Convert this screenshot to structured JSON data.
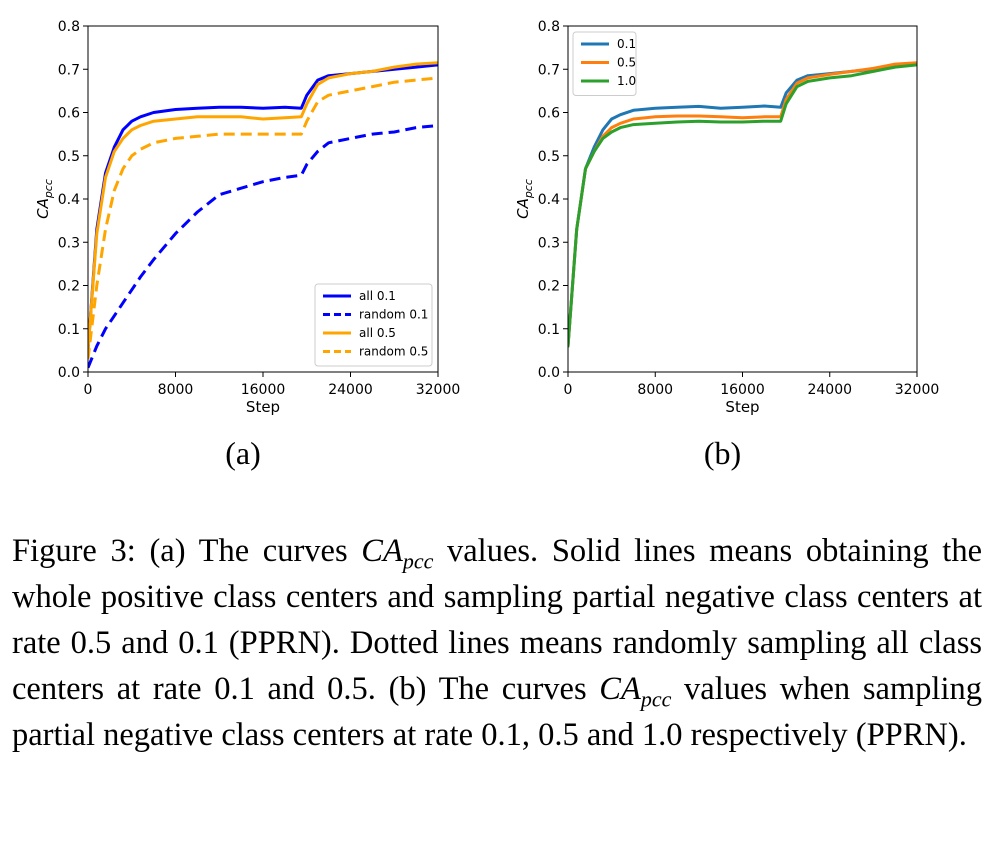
{
  "caption": {
    "lead": "Figure 3: (a) The curves ",
    "math_main": "CA",
    "math_sub": "pcc",
    "part2": " values. Solid lines means obtaining the whole positive class centers and sampling partial negative class centers at rate 0.5 and 0.1 (PPRN). Dotted lines means randomly sampling all class centers at rate 0.1 and 0.5. (b) The curves ",
    "part3": " values when sampling partial negative class centers at rate 0.1, 0.5 and 1.0 respectively (PPRN)."
  },
  "chart_data": [
    {
      "id": "a",
      "panel_label": "(a)",
      "type": "line",
      "xlabel": "Step",
      "ylabel_main": "CA",
      "ylabel_sub": "pcc",
      "xlim": [
        0,
        32000
      ],
      "ylim": [
        0,
        0.8
      ],
      "xticks": [
        "0",
        "8000",
        "16000",
        "24000",
        "32000"
      ],
      "yticks": [
        "0.0",
        "0.1",
        "0.2",
        "0.3",
        "0.4",
        "0.5",
        "0.6",
        "0.7",
        "0.8"
      ],
      "legend_position": "lower-right",
      "x": [
        0,
        800,
        1600,
        2400,
        3200,
        4000,
        4800,
        6000,
        8000,
        10000,
        12000,
        14000,
        16000,
        18000,
        19500,
        20000,
        21000,
        22000,
        24000,
        26000,
        28000,
        30000,
        32000
      ],
      "series": [
        {
          "name": "all 0.1",
          "color": "#0000ff",
          "style": "solid",
          "values": [
            0.05,
            0.33,
            0.46,
            0.52,
            0.56,
            0.58,
            0.59,
            0.6,
            0.607,
            0.61,
            0.612,
            0.612,
            0.61,
            0.612,
            0.61,
            0.64,
            0.675,
            0.685,
            0.69,
            0.695,
            0.7,
            0.705,
            0.71
          ]
        },
        {
          "name": "random 0.1",
          "color": "#0000ff",
          "style": "dashed",
          "values": [
            0.01,
            0.06,
            0.1,
            0.13,
            0.16,
            0.19,
            0.22,
            0.26,
            0.32,
            0.37,
            0.41,
            0.425,
            0.44,
            0.45,
            0.455,
            0.48,
            0.51,
            0.53,
            0.54,
            0.55,
            0.555,
            0.565,
            0.57
          ]
        },
        {
          "name": "all 0.5",
          "color": "#ffa500",
          "style": "solid",
          "values": [
            0.05,
            0.32,
            0.45,
            0.51,
            0.54,
            0.56,
            0.57,
            0.58,
            0.585,
            0.59,
            0.59,
            0.59,
            0.585,
            0.588,
            0.59,
            0.62,
            0.665,
            0.68,
            0.69,
            0.695,
            0.705,
            0.712,
            0.715
          ]
        },
        {
          "name": "random 0.5",
          "color": "#ffa500",
          "style": "dashed",
          "values": [
            0.03,
            0.2,
            0.33,
            0.42,
            0.47,
            0.5,
            0.515,
            0.53,
            0.54,
            0.545,
            0.55,
            0.55,
            0.55,
            0.55,
            0.55,
            0.58,
            0.625,
            0.64,
            0.65,
            0.66,
            0.67,
            0.675,
            0.68
          ]
        }
      ]
    },
    {
      "id": "b",
      "panel_label": "(b)",
      "type": "line",
      "xlabel": "Step",
      "ylabel_main": "CA",
      "ylabel_sub": "pcc",
      "xlim": [
        0,
        32000
      ],
      "ylim": [
        0,
        0.8
      ],
      "xticks": [
        "0",
        "8000",
        "16000",
        "24000",
        "32000"
      ],
      "yticks": [
        "0.0",
        "0.1",
        "0.2",
        "0.3",
        "0.4",
        "0.5",
        "0.6",
        "0.7",
        "0.8"
      ],
      "legend_position": "top-left",
      "x": [
        0,
        800,
        1600,
        2400,
        3200,
        4000,
        4800,
        6000,
        8000,
        10000,
        12000,
        14000,
        16000,
        18000,
        19500,
        20000,
        21000,
        22000,
        24000,
        26000,
        28000,
        30000,
        32000
      ],
      "series": [
        {
          "name": "0.1",
          "color": "#1f77b4",
          "style": "solid",
          "values": [
            0.06,
            0.33,
            0.47,
            0.52,
            0.56,
            0.585,
            0.595,
            0.605,
            0.61,
            0.612,
            0.614,
            0.61,
            0.612,
            0.615,
            0.612,
            0.645,
            0.675,
            0.685,
            0.69,
            0.695,
            0.7,
            0.708,
            0.712
          ]
        },
        {
          "name": "0.5",
          "color": "#ff7f0e",
          "style": "solid",
          "values": [
            0.06,
            0.33,
            0.47,
            0.51,
            0.545,
            0.565,
            0.575,
            0.585,
            0.59,
            0.592,
            0.592,
            0.59,
            0.588,
            0.59,
            0.59,
            0.63,
            0.668,
            0.68,
            0.688,
            0.695,
            0.702,
            0.712,
            0.715
          ]
        },
        {
          "name": "1.0",
          "color": "#2ca02c",
          "style": "solid",
          "values": [
            0.06,
            0.33,
            0.47,
            0.51,
            0.54,
            0.555,
            0.565,
            0.572,
            0.575,
            0.578,
            0.58,
            0.578,
            0.578,
            0.58,
            0.58,
            0.62,
            0.66,
            0.672,
            0.68,
            0.685,
            0.695,
            0.705,
            0.71
          ]
        }
      ]
    }
  ]
}
